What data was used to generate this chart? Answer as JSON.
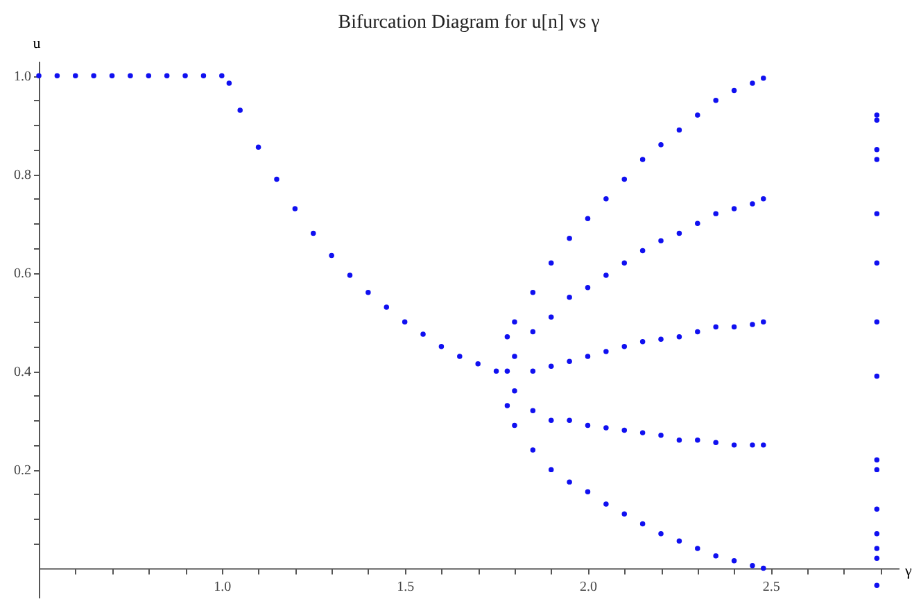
{
  "chart_data": {
    "type": "scatter",
    "title": "Bifurcation Diagram for u[n] vs γ",
    "xlabel": "γ",
    "ylabel": "u",
    "xlim": [
      0.5,
      2.85
    ],
    "ylim": [
      -0.06,
      1.03
    ],
    "xticks": [
      {
        "value": 0.6,
        "label": null
      },
      {
        "value": 0.7,
        "label": null
      },
      {
        "value": 0.8,
        "label": null
      },
      {
        "value": 0.9,
        "label": null
      },
      {
        "value": 1,
        "label": "1.0"
      },
      {
        "value": 1.1,
        "label": null
      },
      {
        "value": 1.2,
        "label": null
      },
      {
        "value": 1.3,
        "label": null
      },
      {
        "value": 1.4,
        "label": null
      },
      1.5,
      {
        "value": 1.6,
        "label": null
      },
      {
        "value": 1.7,
        "label": null
      },
      {
        "value": 1.8,
        "label": null
      },
      {
        "value": 1.9,
        "label": null
      },
      {
        "value": 2,
        "label": "2.0"
      },
      {
        "value": 2.1,
        "label": null
      },
      {
        "value": 2.2,
        "label": null
      },
      {
        "value": 2.3,
        "label": null
      },
      {
        "value": 2.4,
        "label": null
      },
      2.5,
      {
        "value": 2.6,
        "label": null
      },
      {
        "value": 2.7,
        "label": null
      },
      {
        "value": 2.8,
        "label": null
      }
    ],
    "yticks": [
      {
        "value": 0.05,
        "label": null
      },
      {
        "value": 0.1,
        "label": null
      },
      {
        "value": 0.15,
        "label": null
      },
      0.2,
      {
        "value": 0.25,
        "label": null
      },
      {
        "value": 0.3,
        "label": null
      },
      {
        "value": 0.35,
        "label": null
      },
      0.4,
      {
        "value": 0.45,
        "label": null
      },
      {
        "value": 0.5,
        "label": null
      },
      {
        "value": 0.55,
        "label": null
      },
      0.6,
      {
        "value": 0.65,
        "label": null
      },
      {
        "value": 0.7,
        "label": null
      },
      {
        "value": 0.75,
        "label": null
      },
      0.8,
      {
        "value": 0.85,
        "label": null
      },
      {
        "value": 0.9,
        "label": null
      },
      {
        "value": 0.95,
        "label": null
      },
      {
        "value": 1,
        "label": "1.0"
      }
    ],
    "grid": false,
    "marker": "circle",
    "series": [
      {
        "color": "#1010f0",
        "x": [
          0.5,
          0.55,
          0.6,
          0.65,
          0.7,
          0.75,
          0.8,
          0.85,
          0.9,
          0.95,
          1.0,
          1.02,
          1.05,
          1.1,
          1.15,
          1.2,
          1.25,
          1.3,
          1.35,
          1.4,
          1.45,
          1.5,
          1.55,
          1.6,
          1.65,
          1.7,
          1.75,
          1.78,
          1.78,
          1.78,
          1.8,
          1.8,
          1.8,
          1.8,
          1.85,
          1.85,
          1.85,
          1.85,
          1.85,
          1.9,
          1.9,
          1.9,
          1.9,
          1.9,
          1.95,
          1.95,
          1.95,
          1.95,
          1.95,
          2.0,
          2.0,
          2.0,
          2.0,
          2.0,
          2.05,
          2.05,
          2.05,
          2.05,
          2.05,
          2.1,
          2.1,
          2.1,
          2.1,
          2.1,
          2.15,
          2.15,
          2.15,
          2.15,
          2.15,
          2.2,
          2.2,
          2.2,
          2.2,
          2.2,
          2.25,
          2.25,
          2.25,
          2.25,
          2.25,
          2.3,
          2.3,
          2.3,
          2.3,
          2.3,
          2.35,
          2.35,
          2.35,
          2.35,
          2.35,
          2.4,
          2.4,
          2.4,
          2.4,
          2.4,
          2.45,
          2.45,
          2.45,
          2.45,
          2.45,
          2.48,
          2.48,
          2.48,
          2.48,
          2.48,
          2.79,
          2.79,
          2.79,
          2.79,
          2.79,
          2.79,
          2.79,
          2.79,
          2.79,
          2.79,
          2.79,
          2.79,
          2.79,
          2.79,
          2.79
        ],
        "values": [
          1.0,
          1.0,
          1.0,
          1.0,
          1.0,
          1.0,
          1.0,
          1.0,
          1.0,
          1.0,
          1.0,
          0.985,
          0.93,
          0.855,
          0.79,
          0.73,
          0.68,
          0.635,
          0.595,
          0.56,
          0.53,
          0.5,
          0.475,
          0.45,
          0.43,
          0.415,
          0.4,
          0.47,
          0.33,
          0.4,
          0.5,
          0.29,
          0.36,
          0.43,
          0.56,
          0.24,
          0.32,
          0.4,
          0.48,
          0.62,
          0.2,
          0.3,
          0.41,
          0.51,
          0.67,
          0.175,
          0.3,
          0.42,
          0.55,
          0.71,
          0.155,
          0.29,
          0.43,
          0.57,
          0.75,
          0.13,
          0.285,
          0.44,
          0.595,
          0.79,
          0.11,
          0.28,
          0.45,
          0.62,
          0.83,
          0.09,
          0.275,
          0.46,
          0.645,
          0.86,
          0.07,
          0.27,
          0.465,
          0.665,
          0.89,
          0.055,
          0.26,
          0.47,
          0.68,
          0.92,
          0.04,
          0.26,
          0.48,
          0.7,
          0.95,
          0.025,
          0.255,
          0.49,
          0.72,
          0.97,
          0.015,
          0.25,
          0.49,
          0.73,
          0.985,
          0.005,
          0.25,
          0.495,
          0.74,
          0.995,
          0.0,
          0.25,
          0.5,
          0.75,
          0.92,
          0.91,
          0.85,
          0.83,
          0.72,
          0.62,
          0.5,
          0.39,
          0.22,
          0.2,
          0.12,
          0.07,
          0.04,
          0.02,
          -0.035
        ]
      }
    ]
  }
}
